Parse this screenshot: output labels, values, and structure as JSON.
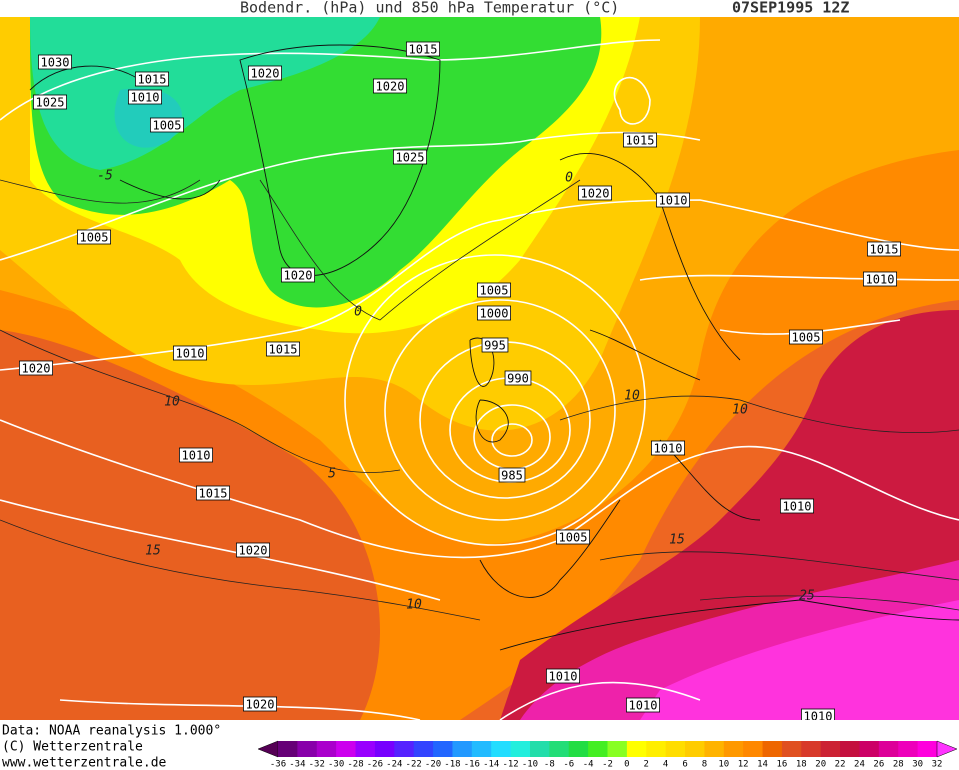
{
  "header": {
    "title": "Bodendr. (hPa) und 850 hPa Temperatur (°C)",
    "date": "07SEP1995 12Z"
  },
  "footer": {
    "lines": [
      "Data: NOAA reanalysis 1.000°",
      "(C) Wetterzentrale",
      "www.wetterzentrale.de"
    ]
  },
  "colorbar": {
    "labels": [
      "-36",
      "-34",
      "-32",
      "-30",
      "-28",
      "-26",
      "-24",
      "-22",
      "-20",
      "-18",
      "-16",
      "-14",
      "-12",
      "-10",
      "-8",
      "-6",
      "-4",
      "-2",
      "0",
      "2",
      "4",
      "6",
      "8",
      "10",
      "12",
      "14",
      "16",
      "18",
      "20",
      "22",
      "24",
      "26",
      "28",
      "30",
      "32"
    ],
    "colors": [
      "#550055",
      "#660077",
      "#8800aa",
      "#aa00cc",
      "#cc00ee",
      "#9900ff",
      "#7700ff",
      "#5522ff",
      "#3344ff",
      "#2266ff",
      "#2299ff",
      "#22bbff",
      "#22ddff",
      "#22eedd",
      "#22ddaa",
      "#22dd77",
      "#22dd44",
      "#44ee22",
      "#88ff22",
      "#ffff00",
      "#ffee00",
      "#ffdd00",
      "#ffcc00",
      "#ffb300",
      "#ff9900",
      "#ff8800",
      "#ee6600",
      "#e05020",
      "#d83a2a",
      "#cc2233",
      "#c4103e",
      "#cc0066",
      "#dd0099",
      "#ee00bb",
      "#ff00dd",
      "#ff33ff"
    ]
  },
  "isobar_labels": [
    "1030",
    "1015",
    "1010",
    "1025",
    "1005",
    "1020",
    "1020",
    "1015",
    "1025",
    "1020",
    "1005",
    "1010",
    "1015",
    "1020",
    "1010",
    "1015",
    "1020",
    "1020",
    "1005",
    "1000",
    "995",
    "990",
    "985",
    "1005",
    "1010",
    "1010",
    "1015",
    "1020",
    "1010",
    "1015",
    "1010",
    "1005",
    "1010",
    "1010",
    "1010"
  ],
  "isotherm_labels": [
    "-5",
    "0",
    "0",
    "10",
    "5",
    "15",
    "10",
    "10",
    "10",
    "15",
    "25"
  ]
}
